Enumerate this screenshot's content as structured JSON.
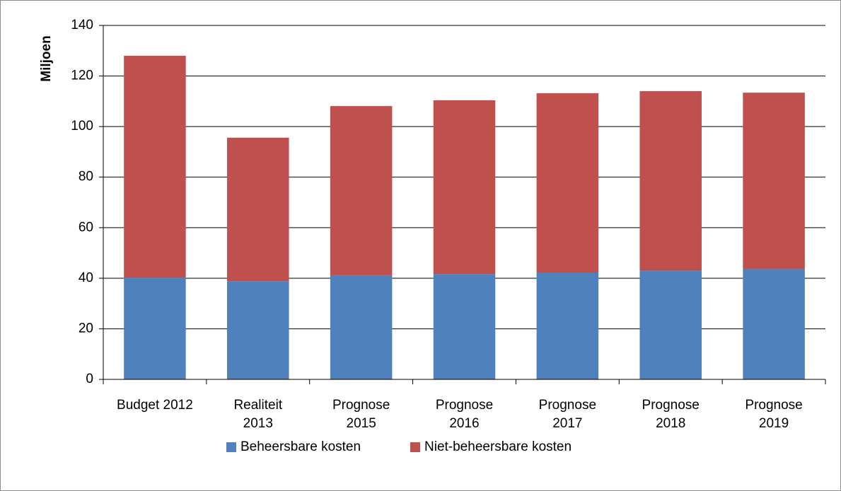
{
  "chart_data": {
    "type": "stacked_bar",
    "categories": [
      "Budget 2012",
      "Realiteit\n2013",
      "Prognose\n2015",
      "Prognose\n2016",
      "Prognose\n2017",
      "Prognose\n2018",
      "Prognose\n2019"
    ],
    "series": [
      {
        "name": "Beheersbare kosten",
        "color": "#4f81bd",
        "values": [
          40.2,
          38.8,
          41.1,
          41.6,
          42.2,
          43.0,
          43.6
        ]
      },
      {
        "name": "Niet-beheersbare kosten",
        "color": "#c0504d",
        "values": [
          87.8,
          56.8,
          67.0,
          68.8,
          71.0,
          71.0,
          69.8
        ]
      }
    ],
    "y_label": "Miljoen",
    "ylim": [
      0,
      140
    ],
    "yticks": [
      0,
      20,
      40,
      60,
      80,
      100,
      120,
      140
    ],
    "grid": true,
    "legend": "bottom"
  }
}
